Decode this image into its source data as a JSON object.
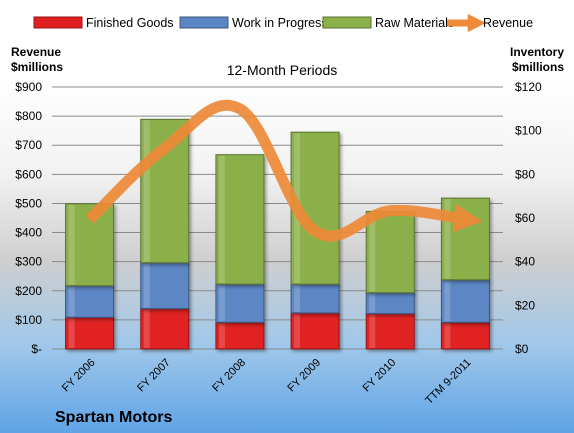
{
  "chart_data": {
    "type": "bar",
    "title": "12-Month Periods",
    "company": "Spartan Motors",
    "categories": [
      "FY 2006",
      "FY 2007",
      "FY 2008",
      "FY 2009",
      "FY 2010",
      "TTM 9-2011"
    ],
    "left_axis": {
      "label_line1": "Revenue",
      "label_line2": "$millions",
      "range": [
        0,
        900
      ],
      "ticks": [
        0,
        100,
        200,
        300,
        400,
        500,
        600,
        700,
        800,
        900
      ],
      "tick_labels": [
        "$-",
        "$100",
        "$200",
        "$300",
        "$400",
        "$500",
        "$600",
        "$700",
        "$800",
        "$900"
      ]
    },
    "right_axis": {
      "label_line1": "Inventory",
      "label_line2": "$millions",
      "range": [
        0,
        120
      ],
      "ticks": [
        0,
        20,
        40,
        60,
        80,
        100,
        120
      ],
      "tick_labels": [
        "$0",
        "$20",
        "$40",
        "$60",
        "$80",
        "$100",
        "$120"
      ]
    },
    "series": [
      {
        "name": "Finished Goods",
        "axis": "right",
        "stacked": true,
        "color": "#e02020",
        "values": [
          14.5,
          18.5,
          12.2,
          16.5,
          16.2,
          12.2
        ]
      },
      {
        "name": "Work in Progress",
        "axis": "right",
        "stacked": true,
        "color": "#5b86c4",
        "values": [
          14.5,
          21.0,
          17.5,
          13.2,
          9.6,
          19.5
        ]
      },
      {
        "name": "Raw Materials",
        "axis": "right",
        "stacked": true,
        "color": "#8cb04a",
        "values": [
          37.5,
          65.7,
          59.3,
          69.6,
          37.2,
          37.4
        ]
      },
      {
        "name": "Revenue",
        "axis": "left",
        "type": "line",
        "color": "#ee8a38",
        "values": [
          445,
          690,
          825,
          405,
          475,
          445
        ]
      }
    ],
    "grid": true,
    "legend": "top"
  }
}
